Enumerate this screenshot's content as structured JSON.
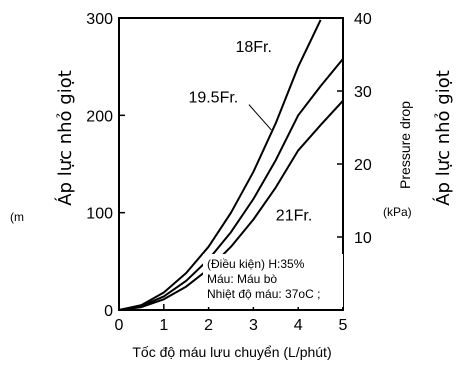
{
  "chart_data": {
    "type": "line",
    "xlabel": "Tốc độ máu lưu chuyển (L/phút)",
    "x_ticks": [
      "0",
      "1",
      "2",
      "3",
      "4",
      "5"
    ],
    "xlim": [
      0,
      5
    ],
    "ylabel_left": "Áp lực nhỏ giọt",
    "ylabel_left_unit": "(m",
    "y_left_ticks": [
      "0",
      "100",
      "200",
      "300"
    ],
    "ylim_left": [
      0,
      300
    ],
    "ylabel_right_vi": "Áp lực nhỏ giọt",
    "ylabel_right_en": "Pressure drop",
    "ylabel_right_unit": "(kPa)",
    "y_right_ticks": [
      "10",
      "20",
      "30",
      "40"
    ],
    "ylim_right": [
      0,
      40
    ],
    "grid": false,
    "series": [
      {
        "name": "18Fr.",
        "x": [
          0,
          0.5,
          1,
          1.5,
          2,
          2.5,
          3,
          3.5,
          4,
          4.5
        ],
        "y": [
          0,
          5,
          18,
          38,
          65,
          100,
          142,
          192,
          250,
          298
        ]
      },
      {
        "name": "19.5Fr.",
        "x": [
          0,
          0.5,
          1,
          1.5,
          2,
          2.5,
          3,
          3.5,
          4,
          4.5,
          5
        ],
        "y": [
          0,
          4,
          14,
          30,
          52,
          80,
          114,
          154,
          200,
          230,
          258
        ]
      },
      {
        "name": "21Fr.",
        "x": [
          0,
          0.5,
          1,
          1.5,
          2,
          2.5,
          3,
          3.5,
          4,
          4.5,
          5
        ],
        "y": [
          0,
          3,
          11,
          24,
          42,
          65,
          93,
          126,
          164,
          190,
          215
        ]
      }
    ],
    "annotation": [
      "(Điều kiện) H:35%",
      "Máu: Máu bò",
      "Nhiệt độ máu: 37oC ;"
    ]
  }
}
